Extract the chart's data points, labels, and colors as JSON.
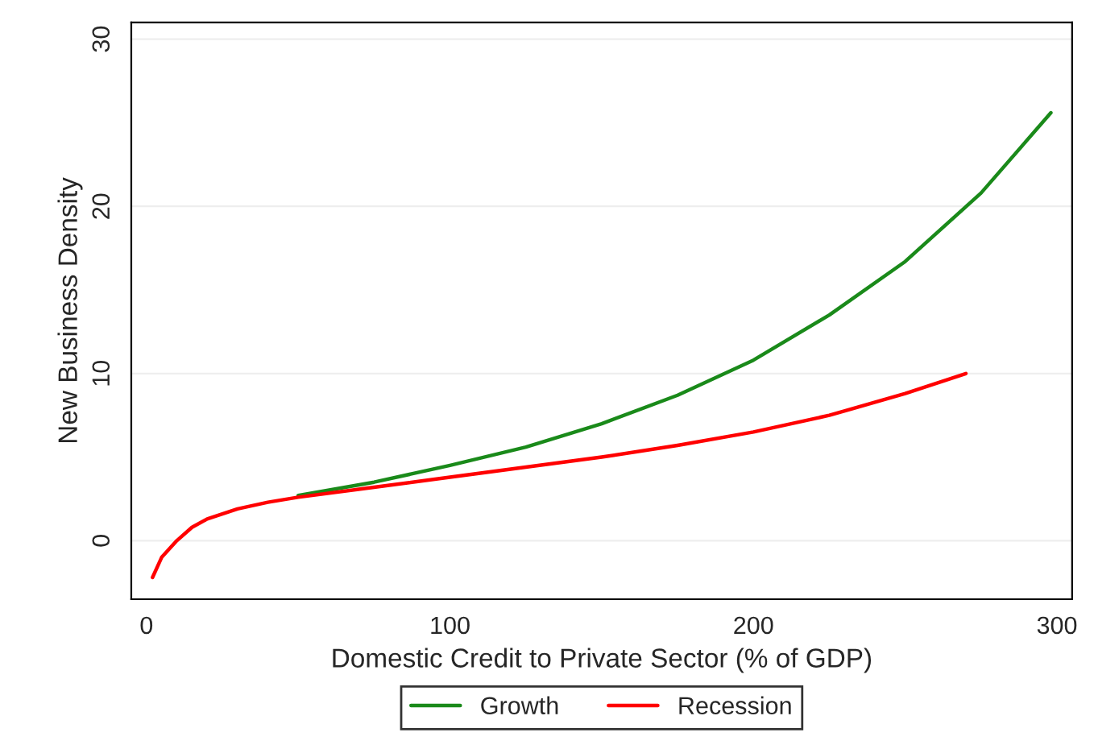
{
  "chart_data": {
    "type": "line",
    "xlabel": "Domestic Credit to Private Sector (% of GDP)",
    "ylabel": "New Business Density",
    "xlim": [
      -5,
      305
    ],
    "xticks": [
      0,
      100,
      200,
      300
    ],
    "ylim": [
      -3.5,
      31
    ],
    "yticks": [
      0,
      10,
      20,
      30
    ],
    "grid": "y",
    "legend": "bottom",
    "marker": "none",
    "line_style": "solid",
    "series": [
      {
        "name": "Growth",
        "color": "#1a8a1a",
        "x": [
          50,
          75,
          100,
          125,
          150,
          175,
          200,
          225,
          250,
          275,
          298
        ],
        "values": [
          2.7,
          3.5,
          4.5,
          5.6,
          7.0,
          8.7,
          10.8,
          13.5,
          16.7,
          20.8,
          25.6
        ]
      },
      {
        "name": "Recession",
        "color": "#ff0000",
        "x": [
          2,
          5,
          10,
          15,
          20,
          30,
          40,
          50,
          75,
          100,
          125,
          150,
          175,
          200,
          225,
          250,
          270
        ],
        "values": [
          -2.2,
          -1.0,
          0,
          0.8,
          1.3,
          1.9,
          2.3,
          2.6,
          3.2,
          3.8,
          4.4,
          5.0,
          5.7,
          6.5,
          7.5,
          8.8,
          10.0
        ]
      }
    ]
  }
}
